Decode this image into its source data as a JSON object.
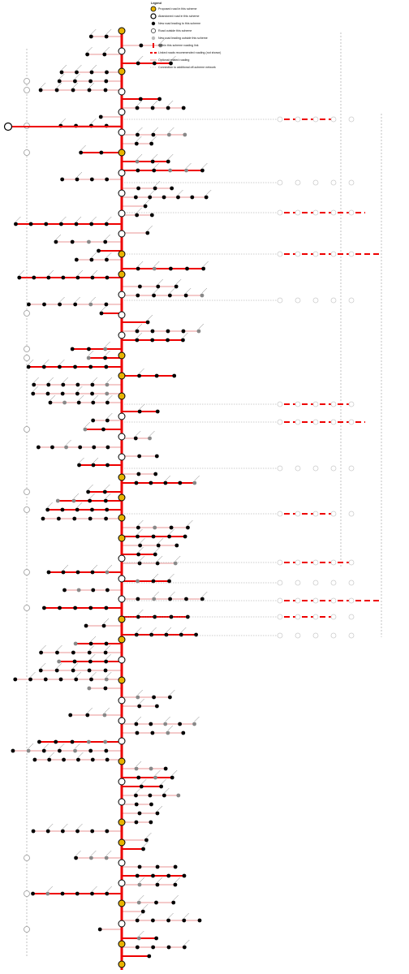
{
  "legend": {
    "title": "Legend",
    "items": [
      "Proposed road in this scheme",
      "Abandoned road in this scheme",
      "New road leading to this scheme",
      "Road outside this scheme",
      "New road leading outside this scheme",
      "Within this scheme roading link",
      "Linked roads recommended roading (not shown)",
      "Optional related roading",
      "Connection to additional off-scheme network"
    ]
  }
}
